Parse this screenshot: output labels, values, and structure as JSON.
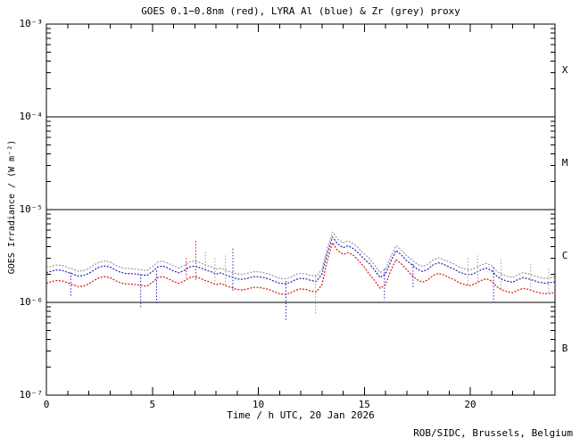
{
  "footer": "ROB/SIDC, Brussels, Belgium",
  "chart_data": {
    "type": "line",
    "title": "GOES 0.1−0.8nm (red), LYRA Al (blue) & Zr (grey) proxy",
    "xlabel": "Time / h UTC, 20 Jan 2026",
    "ylabel": "GOES Irradiance / (W m⁻²)",
    "xlim": [
      0,
      24
    ],
    "ylim": [
      1e-07,
      0.001
    ],
    "y_scale": "log",
    "grid": false,
    "legend_position": "none (colors named in title)",
    "x_major_ticks": [
      0,
      5,
      10,
      15,
      20
    ],
    "x_tick_labels": [
      "0",
      "5",
      "10",
      "15",
      "20"
    ],
    "x_minor_step": 1,
    "y_decades": [
      -3,
      -4,
      -5,
      -6,
      -7
    ],
    "y_tick_labels": [
      "10⁻³",
      "10⁻⁴",
      "10⁻⁵",
      "10⁻⁶",
      "10⁻⁷"
    ],
    "hlines": [
      0.0001,
      1e-05,
      1e-06
    ],
    "flare_classes": [
      "X",
      "M",
      "C",
      "B"
    ],
    "colors": {
      "goes_red": "#dd1111",
      "lyra_al_blue": "#2222bb",
      "lyra_zr_grey": "#999999",
      "axis": "#000000",
      "background": "#ffffff"
    },
    "values_scale": 1e-06,
    "x": [
      0,
      0.25,
      0.5,
      0.75,
      1,
      1.25,
      1.5,
      1.75,
      2,
      2.25,
      2.5,
      2.75,
      3,
      3.25,
      3.5,
      3.75,
      4,
      4.25,
      4.5,
      4.75,
      5,
      5.25,
      5.5,
      5.75,
      6,
      6.25,
      6.5,
      6.75,
      7,
      7.25,
      7.5,
      7.75,
      8,
      8.25,
      8.5,
      8.75,
      9,
      9.25,
      9.5,
      9.75,
      10,
      10.25,
      10.5,
      10.75,
      11,
      11.25,
      11.5,
      11.75,
      12,
      12.25,
      12.5,
      12.75,
      13,
      13.25,
      13.5,
      13.75,
      14,
      14.25,
      14.5,
      14.75,
      15,
      15.25,
      15.5,
      15.75,
      16,
      16.25,
      16.5,
      16.75,
      17,
      17.25,
      17.5,
      17.75,
      18,
      18.25,
      18.5,
      18.75,
      19,
      19.25,
      19.5,
      19.75,
      20,
      20.25,
      20.5,
      20.75,
      21,
      21.25,
      21.5,
      21.75,
      22,
      22.25,
      22.5,
      22.75,
      23,
      23.25,
      23.5,
      23.75,
      24
    ],
    "series": [
      {
        "name": "GOES 0.1-0.8nm",
        "color_key": "goes_red",
        "values": [
          1.6,
          1.68,
          1.72,
          1.7,
          1.62,
          1.55,
          1.48,
          1.5,
          1.58,
          1.72,
          1.85,
          1.9,
          1.85,
          1.72,
          1.62,
          1.58,
          1.57,
          1.55,
          1.52,
          1.5,
          1.65,
          1.85,
          1.9,
          1.8,
          1.68,
          1.6,
          1.7,
          1.85,
          1.9,
          1.82,
          1.72,
          1.65,
          1.55,
          1.6,
          1.5,
          1.44,
          1.38,
          1.36,
          1.4,
          1.45,
          1.45,
          1.42,
          1.38,
          1.3,
          1.24,
          1.22,
          1.26,
          1.35,
          1.4,
          1.38,
          1.32,
          1.3,
          1.55,
          2.8,
          4.4,
          3.6,
          3.3,
          3.45,
          3.2,
          2.8,
          2.4,
          2.0,
          1.7,
          1.42,
          1.55,
          2.2,
          2.9,
          2.6,
          2.25,
          1.95,
          1.75,
          1.65,
          1.75,
          1.95,
          2.05,
          1.98,
          1.85,
          1.75,
          1.62,
          1.55,
          1.52,
          1.6,
          1.72,
          1.8,
          1.7,
          1.48,
          1.36,
          1.3,
          1.27,
          1.35,
          1.42,
          1.38,
          1.32,
          1.27,
          1.24,
          1.25,
          1.28
        ]
      },
      {
        "name": "LYRA Al proxy",
        "color_key": "lyra_al_blue",
        "values": [
          2.08,
          2.18,
          2.24,
          2.21,
          2.11,
          2.02,
          1.92,
          1.95,
          2.05,
          2.24,
          2.41,
          2.47,
          2.41,
          2.24,
          2.11,
          2.05,
          2.04,
          2.02,
          1.98,
          1.95,
          2.15,
          2.41,
          2.47,
          2.34,
          2.18,
          2.08,
          2.21,
          2.41,
          2.47,
          2.37,
          2.24,
          2.15,
          2.02,
          2.08,
          1.95,
          1.87,
          1.79,
          1.77,
          1.82,
          1.89,
          1.89,
          1.85,
          1.79,
          1.69,
          1.61,
          1.59,
          1.64,
          1.76,
          1.82,
          1.79,
          1.72,
          1.69,
          2.02,
          3.36,
          5.06,
          4.25,
          3.89,
          4.07,
          3.78,
          3.36,
          2.93,
          2.6,
          2.21,
          1.85,
          2.02,
          2.75,
          3.63,
          3.25,
          2.81,
          2.54,
          2.28,
          2.15,
          2.28,
          2.54,
          2.67,
          2.57,
          2.41,
          2.28,
          2.11,
          2.02,
          1.98,
          2.08,
          2.24,
          2.34,
          2.21,
          1.92,
          1.77,
          1.69,
          1.65,
          1.76,
          1.85,
          1.79,
          1.72,
          1.65,
          1.61,
          1.63,
          1.66
        ]
      },
      {
        "name": "LYRA Zr proxy",
        "color_key": "lyra_zr_grey",
        "values": [
          2.35,
          2.46,
          2.53,
          2.5,
          2.38,
          2.28,
          2.17,
          2.2,
          2.32,
          2.53,
          2.72,
          2.79,
          2.72,
          2.53,
          2.38,
          2.32,
          2.31,
          2.28,
          2.24,
          2.2,
          2.43,
          2.72,
          2.79,
          2.64,
          2.46,
          2.35,
          2.5,
          2.72,
          2.79,
          2.68,
          2.53,
          2.43,
          2.28,
          2.35,
          2.2,
          2.11,
          2.02,
          2.0,
          2.06,
          2.14,
          2.14,
          2.09,
          2.02,
          1.91,
          1.82,
          1.8,
          1.85,
          1.99,
          2.06,
          2.02,
          1.94,
          1.91,
          2.28,
          3.8,
          5.72,
          4.8,
          4.4,
          4.6,
          4.27,
          3.8,
          3.31,
          2.94,
          2.5,
          2.09,
          2.28,
          3.11,
          4.1,
          3.67,
          3.18,
          2.87,
          2.58,
          2.43,
          2.58,
          2.87,
          3.02,
          2.9,
          2.72,
          2.58,
          2.38,
          2.28,
          2.24,
          2.35,
          2.53,
          2.64,
          2.5,
          2.17,
          2.0,
          1.91,
          1.86,
          1.99,
          2.09,
          2.02,
          1.94,
          1.86,
          1.82,
          1.84,
          1.88
        ]
      }
    ],
    "spikes": [
      {
        "t": 1.15,
        "color_key": "lyra_al_blue",
        "v_top": 2.1,
        "v_bottom": 1.15
      },
      {
        "t": 4.45,
        "color_key": "lyra_al_blue",
        "v_top": 2.0,
        "v_bottom": 0.85
      },
      {
        "t": 5.2,
        "color_key": "lyra_al_blue",
        "v_top": 2.2,
        "v_bottom": 0.95
      },
      {
        "t": 6.6,
        "color_key": "goes_red",
        "v_top": 3.0,
        "v_bottom": 1.85
      },
      {
        "t": 7.05,
        "color_key": "goes_red",
        "v_top": 4.6,
        "v_bottom": 1.75
      },
      {
        "t": 7.5,
        "color_key": "lyra_zr_grey",
        "v_top": 3.5,
        "v_bottom": 2.3
      },
      {
        "t": 7.95,
        "color_key": "lyra_zr_grey",
        "v_top": 3.0,
        "v_bottom": 1.6
      },
      {
        "t": 8.45,
        "color_key": "lyra_zr_grey",
        "v_top": 3.2,
        "v_bottom": 1.5
      },
      {
        "t": 8.8,
        "color_key": "lyra_al_blue",
        "v_top": 3.8,
        "v_bottom": 1.3
      },
      {
        "t": 11.3,
        "color_key": "lyra_al_blue",
        "v_top": 1.7,
        "v_bottom": 0.62
      },
      {
        "t": 12.7,
        "color_key": "lyra_zr_grey",
        "v_top": 2.0,
        "v_bottom": 0.75
      },
      {
        "t": 15.95,
        "color_key": "lyra_al_blue",
        "v_top": 2.3,
        "v_bottom": 1.05
      },
      {
        "t": 17.3,
        "color_key": "lyra_al_blue",
        "v_top": 2.6,
        "v_bottom": 1.4
      },
      {
        "t": 19.9,
        "color_key": "lyra_zr_grey",
        "v_top": 3.0,
        "v_bottom": 1.5
      },
      {
        "t": 20.35,
        "color_key": "lyra_zr_grey",
        "v_top": 3.2,
        "v_bottom": 1.6
      },
      {
        "t": 21.1,
        "color_key": "lyra_al_blue",
        "v_top": 2.4,
        "v_bottom": 0.95
      },
      {
        "t": 21.45,
        "color_key": "lyra_zr_grey",
        "v_top": 2.9,
        "v_bottom": 1.4
      },
      {
        "t": 22.85,
        "color_key": "lyra_zr_grey",
        "v_top": 2.6,
        "v_bottom": 1.35
      },
      {
        "t": 23.7,
        "color_key": "lyra_zr_grey",
        "v_top": 2.3,
        "v_bottom": 1.25
      }
    ]
  }
}
